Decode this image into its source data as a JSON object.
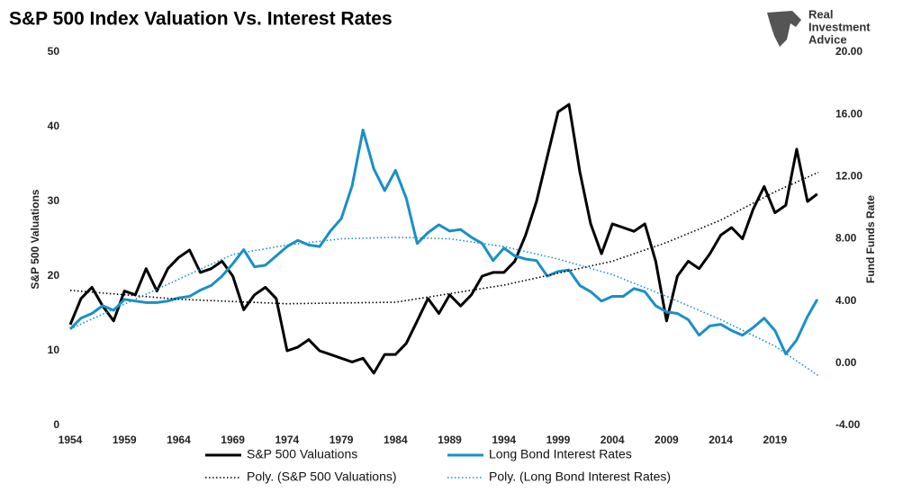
{
  "chart_data": {
    "type": "line",
    "title": "S&P 500 Index Valuation Vs. Interest Rates",
    "y_label": "S&P 500 Valuations",
    "y2_label": "Fund Funds Rate",
    "logo": [
      "Real",
      "Investment",
      "Advice"
    ],
    "xlim": [
      1954,
      2023.5
    ],
    "xticks": [
      1954,
      1959,
      1964,
      1969,
      1974,
      1979,
      1984,
      1989,
      1994,
      1999,
      2004,
      2009,
      2014,
      2019
    ],
    "ylim": [
      0,
      50
    ],
    "yticks": [
      0,
      10,
      20,
      30,
      40,
      50
    ],
    "y2lim": [
      -4,
      20
    ],
    "y2ticks": [
      {
        "value": -4,
        "label": "-4.00"
      },
      {
        "value": 0,
        "label": "0.00"
      },
      {
        "value": 4,
        "label": "4.00"
      },
      {
        "value": 8,
        "label": "8.00"
      },
      {
        "value": 12,
        "label": "12.00"
      },
      {
        "value": 16,
        "label": "16.00"
      },
      {
        "value": 20,
        "label": "20.00"
      }
    ],
    "series": [
      {
        "name": "S&P 500 Valuations",
        "color": "#000000",
        "style": "solid",
        "x": [
          1954,
          1955,
          1956,
          1957,
          1958,
          1959,
          1960,
          1961,
          1962,
          1963,
          1964,
          1965,
          1966,
          1967,
          1968,
          1969,
          1970,
          1971,
          1972,
          1973,
          1974,
          1975,
          1976,
          1977,
          1978,
          1979,
          1980,
          1981,
          1982,
          1983,
          1984,
          1985,
          1986,
          1987,
          1988,
          1989,
          1990,
          1991,
          1992,
          1993,
          1994,
          1995,
          1996,
          1997,
          1998,
          1999,
          2000,
          2001,
          2002,
          2003,
          2004,
          2005,
          2006,
          2007,
          2008,
          2009,
          2010,
          2011,
          2012,
          2013,
          2014,
          2015,
          2016,
          2017,
          2018,
          2019,
          2020,
          2021,
          2022,
          2022.9
        ],
        "values": [
          13.5,
          17,
          18.5,
          16,
          14,
          18,
          17.5,
          21,
          18,
          21,
          22.5,
          23.5,
          20.5,
          21,
          22,
          20,
          15.5,
          17.5,
          18.5,
          17,
          10,
          10.5,
          11.5,
          10,
          9.5,
          9,
          8.5,
          9,
          7,
          9.5,
          9.5,
          11,
          14,
          17,
          15,
          17.5,
          16,
          17.5,
          20,
          20.5,
          20.5,
          22,
          25.5,
          30,
          36,
          42,
          43,
          34,
          27,
          23,
          27,
          26.5,
          26,
          27,
          22,
          14,
          20,
          22,
          21,
          23,
          25.5,
          26.5,
          25,
          29,
          32,
          28.5,
          29.5,
          37,
          30,
          31
        ]
      },
      {
        "name": "Long Bond Interest Rates",
        "color": "#1a8fc9",
        "style": "solid",
        "axis": "y2",
        "x": [
          1954,
          1955,
          1956,
          1957,
          1958,
          1959,
          1960,
          1961,
          1962,
          1963,
          1964,
          1965,
          1966,
          1967,
          1968,
          1969,
          1970,
          1971,
          1972,
          1973,
          1974,
          1975,
          1976,
          1977,
          1978,
          1979,
          1980,
          1981,
          1982,
          1983,
          1984,
          1985,
          1986,
          1987,
          1988,
          1989,
          1990,
          1991,
          1992,
          1993,
          1994,
          1995,
          1996,
          1997,
          1998,
          1999,
          2000,
          2001,
          2002,
          2003,
          2004,
          2005,
          2006,
          2007,
          2008,
          2009,
          2010,
          2011,
          2012,
          2013,
          2014,
          2015,
          2016,
          2017,
          2018,
          2019,
          2020,
          2021,
          2022,
          2022.9
        ],
        "values": [
          2.2,
          2.9,
          3.2,
          3.7,
          3.4,
          4.1,
          4.0,
          3.9,
          3.9,
          4.0,
          4.2,
          4.3,
          4.7,
          5.0,
          5.6,
          6.4,
          7.3,
          6.2,
          6.3,
          6.9,
          7.5,
          7.9,
          7.6,
          7.5,
          8.5,
          9.3,
          11.4,
          15.0,
          12.5,
          11.1,
          12.4,
          10.6,
          7.7,
          8.4,
          8.9,
          8.5,
          8.6,
          8.1,
          7.7,
          6.6,
          7.4,
          6.9,
          6.7,
          6.6,
          5.6,
          5.9,
          6.0,
          5.0,
          4.6,
          4.0,
          4.3,
          4.3,
          4.8,
          4.6,
          3.7,
          3.3,
          3.2,
          2.8,
          1.8,
          2.4,
          2.5,
          2.1,
          1.8,
          2.3,
          2.9,
          2.1,
          0.6,
          1.5,
          3.0,
          4.1
        ]
      },
      {
        "name": "Poly. (S&P 500 Valuations)",
        "color": "#000000",
        "style": "dotted",
        "x": [
          1954,
          1964,
          1974,
          1984,
          1994,
          2004,
          2009,
          2014,
          2019,
          2023
        ],
        "values": [
          18.1,
          16.9,
          16.3,
          16.5,
          18.8,
          22,
          24.5,
          27.5,
          31.3,
          33.9
        ]
      },
      {
        "name": "Poly. (Long Bond Interest Rates)",
        "color": "#1a8fc9",
        "style": "dotted",
        "axis": "y2",
        "x": [
          1954,
          1964,
          1969,
          1974,
          1979,
          1984,
          1989,
          1994,
          1999,
          2004,
          2009,
          2014,
          2019,
          2023
        ],
        "values": [
          2.2,
          5.4,
          7.0,
          7.6,
          8.0,
          8.1,
          8.0,
          7.5,
          6.7,
          5.7,
          4.3,
          2.8,
          1.1,
          -0.8
        ]
      }
    ]
  }
}
